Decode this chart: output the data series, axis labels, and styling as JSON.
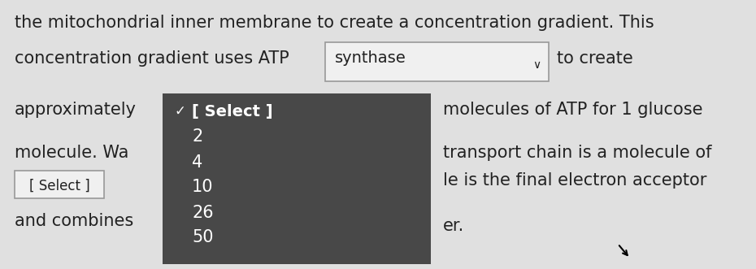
{
  "bg_color": "#e0e0e0",
  "line1_text": "the mitochondrial inner membrane to create a concentration gradient. This",
  "line2_left": "concentration gradient uses ATP",
  "line2_dropdown_text": "synthase",
  "line2_right": "to create",
  "line3_left": "approximately",
  "line3_right": "molecules of ATP for 1 glucose",
  "line4_left": "molecule. Wa",
  "line4_right": "transport chain is a molecule of",
  "line5_right": "le is the final electron acceptor",
  "line6_left": "and combines",
  "line6_right": "er.",
  "dropdown_bg": "#f0f0f0",
  "dark_menu_color": "#484848",
  "menu_items": [
    "[ Select ]",
    "2",
    "4",
    "10",
    "26",
    "50"
  ],
  "font_size_body": 15,
  "font_size_menu": 14,
  "text_color_body": "#222222",
  "text_color_light": "#ffffff"
}
